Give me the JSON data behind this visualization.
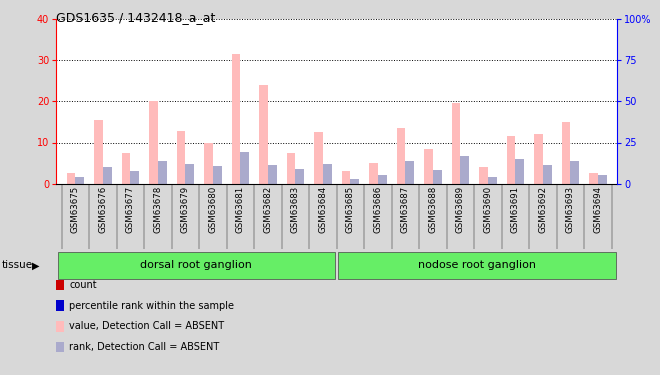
{
  "title": "GDS1635 / 1432418_a_at",
  "samples": [
    "GSM63675",
    "GSM63676",
    "GSM63677",
    "GSM63678",
    "GSM63679",
    "GSM63680",
    "GSM63681",
    "GSM63682",
    "GSM63683",
    "GSM63684",
    "GSM63685",
    "GSM63686",
    "GSM63687",
    "GSM63688",
    "GSM63689",
    "GSM63690",
    "GSM63691",
    "GSM63692",
    "GSM63693",
    "GSM63694"
  ],
  "value_absent": [
    2.5,
    15.5,
    7.5,
    20.0,
    12.8,
    10.0,
    31.5,
    24.0,
    7.5,
    12.5,
    3.0,
    5.0,
    13.5,
    8.5,
    19.5,
    4.0,
    11.5,
    12.0,
    15.0,
    2.5
  ],
  "rank_absent": [
    4.0,
    10.0,
    8.0,
    13.5,
    12.0,
    10.5,
    19.0,
    11.5,
    9.0,
    12.0,
    3.0,
    5.5,
    14.0,
    8.5,
    17.0,
    4.0,
    15.0,
    11.5,
    13.5,
    5.5
  ],
  "ylim_left": [
    0,
    40
  ],
  "ylim_right": [
    0,
    100
  ],
  "yticks_left": [
    0,
    10,
    20,
    30,
    40
  ],
  "yticks_right": [
    0,
    25,
    50,
    75,
    100
  ],
  "tissue_groups": [
    {
      "label": "dorsal root ganglion",
      "start": 0,
      "end": 9
    },
    {
      "label": "nodose root ganglion",
      "start": 10,
      "end": 19
    }
  ],
  "tissue_label": "tissue",
  "bg_color": "#d8d8d8",
  "plot_bg": "#ffffff",
  "tissue_bg": "#66ee66",
  "bar_absent_value_color": "#ffbbbb",
  "bar_absent_rank_color": "#aaaacc",
  "legend_items": [
    {
      "color": "#cc0000",
      "label": "count"
    },
    {
      "color": "#0000cc",
      "label": "percentile rank within the sample"
    },
    {
      "color": "#ffbbbb",
      "label": "value, Detection Call = ABSENT"
    },
    {
      "color": "#aaaacc",
      "label": "rank, Detection Call = ABSENT"
    }
  ]
}
